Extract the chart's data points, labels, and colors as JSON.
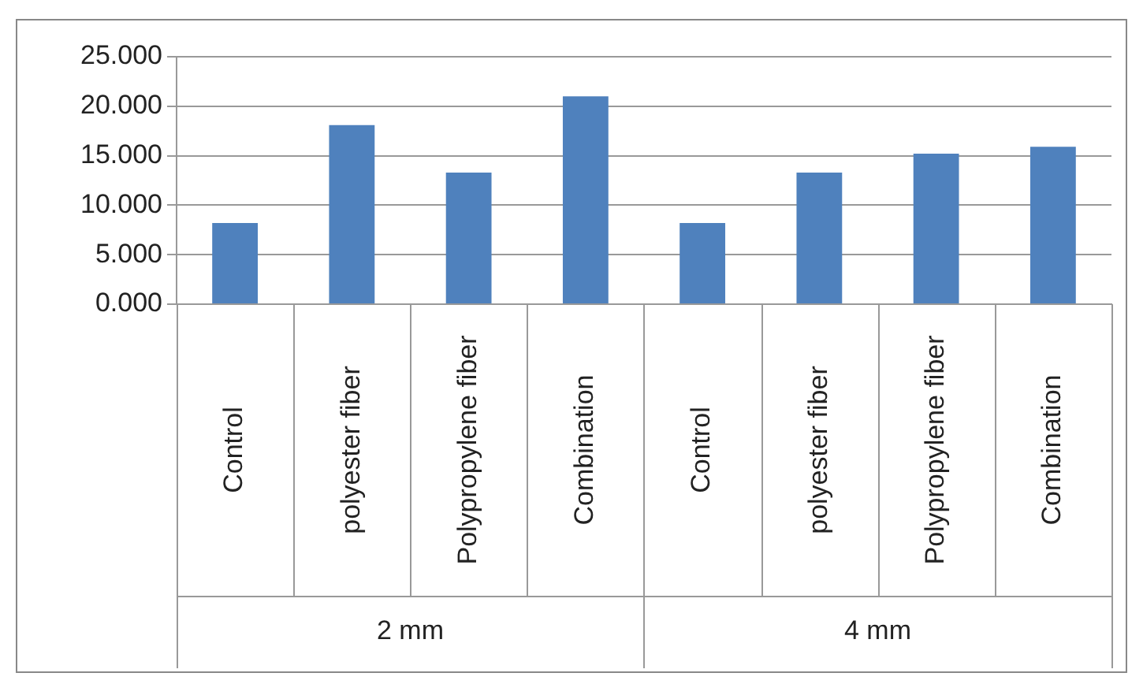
{
  "chart_data": {
    "type": "bar",
    "categories": [
      "Control",
      "polyester fiber",
      "Polypropylene fiber",
      "Combination",
      "Control",
      "polyester fiber",
      "Polypropylene fiber",
      "Combination"
    ],
    "values": [
      8.2,
      18.1,
      13.3,
      21.0,
      8.2,
      13.3,
      15.2,
      15.9
    ],
    "color": "#4f81bd",
    "ylim": [
      0,
      25
    ],
    "yticks": [
      {
        "value": 0,
        "label": "0.000"
      },
      {
        "value": 5,
        "label": "5.000"
      },
      {
        "value": 10,
        "label": "10.000"
      },
      {
        "value": 15,
        "label": "15.000"
      },
      {
        "value": 20,
        "label": "20.000"
      },
      {
        "value": 25,
        "label": "25.000"
      }
    ],
    "grid": "y",
    "annotations": [
      "2 mm",
      "4 mm"
    ]
  }
}
